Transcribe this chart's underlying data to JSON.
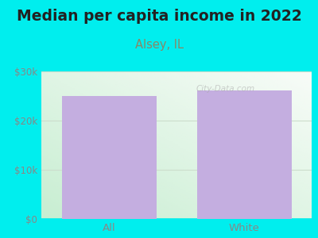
{
  "title": "Median per capita income in 2022",
  "subtitle": "Alsey, IL",
  "categories": [
    "All",
    "White"
  ],
  "values": [
    25000,
    26200
  ],
  "bar_color": "#c4aee0",
  "title_fontsize": 13.5,
  "subtitle_fontsize": 10.5,
  "title_color": "#222222",
  "subtitle_color": "#888866",
  "tick_color": "#888888",
  "background_outer": "#00eeee",
  "plot_bg_top_right": "#f0f8f0",
  "plot_bg_bottom_left": "#c8eed8",
  "ylim": [
    0,
    30000
  ],
  "yticks": [
    0,
    10000,
    20000,
    30000
  ],
  "ytick_labels": [
    "$0",
    "$10k",
    "$20k",
    "$30k"
  ],
  "watermark": "City-Data.com",
  "grid_color": "#ccddcc",
  "bar_width": 0.7
}
